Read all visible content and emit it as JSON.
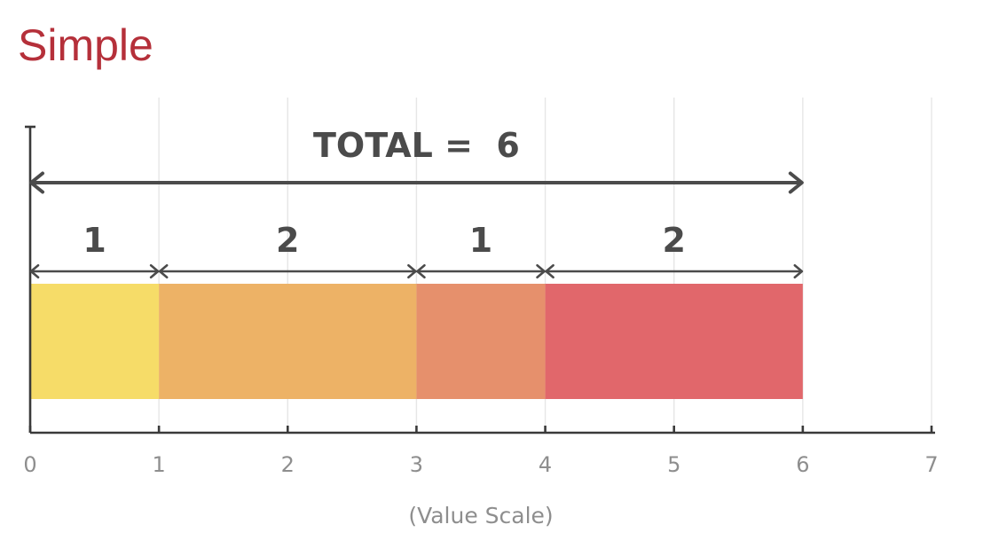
{
  "title": "Simple",
  "chart_data": {
    "type": "bar",
    "orientation": "horizontal",
    "stacked": true,
    "title": "Simple",
    "xlabel": "(Value Scale)",
    "ylabel": "",
    "xlim": [
      0,
      7
    ],
    "x_ticks": [
      "0",
      "1",
      "2",
      "3",
      "4",
      "5",
      "6",
      "7"
    ],
    "grid": true,
    "segments": [
      {
        "label": "1",
        "value": 1,
        "color": "#f6dc68"
      },
      {
        "label": "2",
        "value": 2,
        "color": "#edb266"
      },
      {
        "label": "1",
        "value": 1,
        "color": "#e6906c"
      },
      {
        "label": "2",
        "value": 2,
        "color": "#e1676b"
      }
    ],
    "total": {
      "label": "TOTAL =  6",
      "value": 6
    }
  }
}
